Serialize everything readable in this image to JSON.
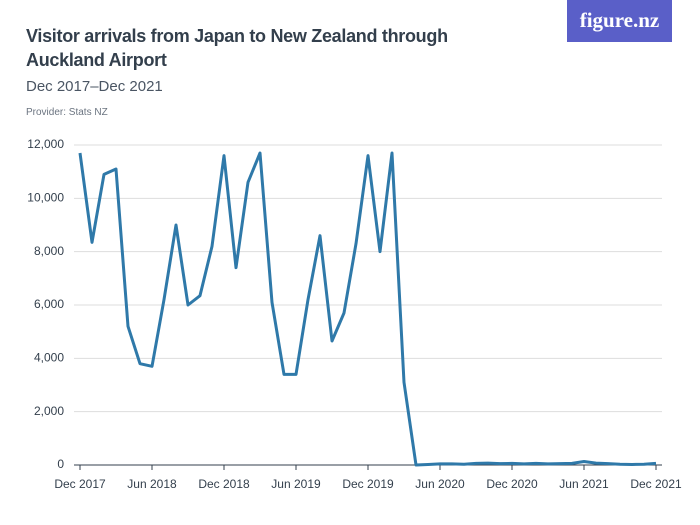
{
  "header": {
    "title": "Visitor arrivals from Japan to New Zealand through Auckland Airport",
    "subtitle": "Dec 2017–Dec 2021",
    "provider": "Provider: Stats NZ",
    "logo": "figure.nz"
  },
  "chart_data": {
    "type": "line",
    "x": [
      "Dec 2017",
      "Jan 2018",
      "Feb 2018",
      "Mar 2018",
      "Apr 2018",
      "May 2018",
      "Jun 2018",
      "Jul 2018",
      "Aug 2018",
      "Sep 2018",
      "Oct 2018",
      "Nov 2018",
      "Dec 2018",
      "Jan 2019",
      "Feb 2019",
      "Mar 2019",
      "Apr 2019",
      "May 2019",
      "Jun 2019",
      "Jul 2019",
      "Aug 2019",
      "Sep 2019",
      "Oct 2019",
      "Nov 2019",
      "Dec 2019",
      "Jan 2020",
      "Feb 2020",
      "Mar 2020",
      "Apr 2020",
      "May 2020",
      "Jun 2020",
      "Jul 2020",
      "Aug 2020",
      "Sep 2020",
      "Oct 2020",
      "Nov 2020",
      "Dec 2020",
      "Jan 2021",
      "Feb 2021",
      "Mar 2021",
      "Apr 2021",
      "May 2021",
      "Jun 2021",
      "Jul 2021",
      "Aug 2021",
      "Sep 2021",
      "Oct 2021",
      "Nov 2021",
      "Dec 2021"
    ],
    "series": [
      {
        "color": "#2f79a9",
        "values": [
          11700,
          8350,
          10900,
          11100,
          5200,
          3800,
          3700,
          6200,
          9000,
          6000,
          6350,
          8200,
          11600,
          7400,
          10600,
          11700,
          6100,
          3400,
          3400,
          6200,
          8600,
          4650,
          5700,
          8300,
          11600,
          8000,
          11700,
          3100,
          0,
          20,
          40,
          40,
          30,
          60,
          70,
          50,
          60,
          40,
          60,
          40,
          50,
          60,
          130,
          70,
          50,
          30,
          20,
          30,
          60
        ]
      }
    ],
    "xticks": [
      "Dec 2017",
      "Jun 2018",
      "Dec 2018",
      "Jun 2019",
      "Dec 2019",
      "Jun 2020",
      "Dec 2020",
      "Jun 2021",
      "Dec 2021"
    ],
    "ylim": [
      0,
      12000
    ],
    "yticks": [
      0,
      {
        "value": 2000,
        "label": "2,000"
      },
      {
        "value": 4000,
        "label": "4,000"
      },
      {
        "value": 6000,
        "label": "6,000"
      },
      {
        "value": 8000,
        "label": "8,000"
      },
      {
        "value": 10000,
        "label": "10,000"
      },
      {
        "value": 12000,
        "label": "12,000"
      }
    ],
    "grid": true
  }
}
